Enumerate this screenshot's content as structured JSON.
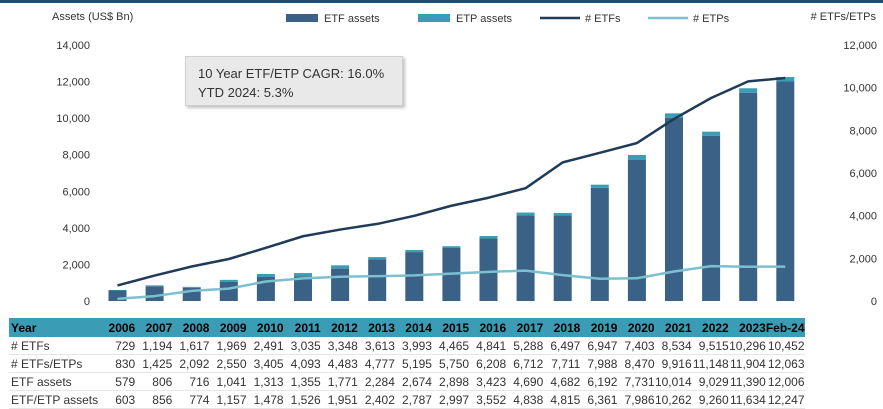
{
  "header": {
    "left_axis_title": "Assets (US$ Bn)",
    "right_axis_title": "# ETFs/ETPs"
  },
  "info_box": {
    "line1": "10 Year ETF/ETP CAGR: 16.0%",
    "line2": "YTD 2024: 5.3%"
  },
  "colors": {
    "etf_assets": "#3a6186",
    "etp_assets": "#3b9cb5",
    "num_etfs": "#1f3b57",
    "num_etps": "#7cc0cf",
    "table_header": "#3b9cb5"
  },
  "chart_data": {
    "type": "bar",
    "categories": [
      "2006",
      "2007",
      "2008",
      "2009",
      "2010",
      "2011",
      "2012",
      "2013",
      "2014",
      "2015",
      "2016",
      "2017",
      "2018",
      "2019",
      "2020",
      "2021",
      "2022",
      "2023",
      "Feb-24"
    ],
    "series": [
      {
        "name": "ETF assets",
        "kind": "bar",
        "axis": "left",
        "values": [
          579,
          806,
          716,
          1041,
          1313,
          1355,
          1771,
          2284,
          2674,
          2898,
          3423,
          4690,
          4682,
          6192,
          7731,
          10014,
          9029,
          11390,
          12006
        ]
      },
      {
        "name": "ETP assets",
        "kind": "bar-stacked",
        "axis": "left",
        "values": [
          24,
          50,
          58,
          116,
          165,
          171,
          180,
          118,
          113,
          99,
          129,
          148,
          133,
          169,
          255,
          248,
          231,
          244,
          241
        ]
      },
      {
        "name": "# ETFs",
        "kind": "line",
        "axis": "right",
        "values": [
          729,
          1194,
          1617,
          1969,
          2491,
          3035,
          3348,
          3613,
          3993,
          4465,
          4841,
          5288,
          6497,
          6947,
          7403,
          8534,
          9515,
          10296,
          10452
        ]
      },
      {
        "name": "# ETPs",
        "kind": "line",
        "axis": "right",
        "values": [
          101,
          231,
          475,
          581,
          914,
          1058,
          1135,
          1164,
          1202,
          1285,
          1367,
          1424,
          1214,
          1041,
          1067,
          1382,
          1633,
          1608,
          1611
        ]
      }
    ],
    "left_axis": {
      "min": 0,
      "max": 14000,
      "ticks": [
        "0",
        "2,000",
        "4,000",
        "6,000",
        "8,000",
        "10,000",
        "12,000",
        "14,000"
      ]
    },
    "right_axis": {
      "min": 0,
      "max": 12000,
      "ticks": [
        "0",
        "2,000",
        "4,000",
        "6,000",
        "8,000",
        "10,000",
        "12,000"
      ]
    },
    "legend_position": "top",
    "grid": false
  },
  "table": {
    "header_label": "Year",
    "years": [
      "2006",
      "2007",
      "2008",
      "2009",
      "2010",
      "2011",
      "2012",
      "2013",
      "2014",
      "2015",
      "2016",
      "2017",
      "2018",
      "2019",
      "2020",
      "2021",
      "2022",
      "2023",
      "Feb-24"
    ],
    "rows": [
      {
        "label": "# ETFs",
        "values": [
          "729",
          "1,194",
          "1,617",
          "1,969",
          "2,491",
          "3,035",
          "3,348",
          "3,613",
          "3,993",
          "4,465",
          "4,841",
          "5,288",
          "6,497",
          "6,947",
          "7,403",
          "8,534",
          "9,515",
          "10,296",
          "10,452"
        ]
      },
      {
        "label": "# ETFs/ETPs",
        "values": [
          "830",
          "1,425",
          "2,092",
          "2,550",
          "3,405",
          "4,093",
          "4,483",
          "4,777",
          "5,195",
          "5,750",
          "6,208",
          "6,712",
          "7,711",
          "7,988",
          "8,470",
          "9,916",
          "11,148",
          "11,904",
          "12,063"
        ]
      },
      {
        "label": "ETF assets",
        "values": [
          "579",
          "806",
          "716",
          "1,041",
          "1,313",
          "1,355",
          "1,771",
          "2,284",
          "2,674",
          "2,898",
          "3,423",
          "4,690",
          "4,682",
          "6,192",
          "7,731",
          "10,014",
          "9,029",
          "11,390",
          "12,006"
        ]
      },
      {
        "label": "ETF/ETP assets",
        "values": [
          "603",
          "856",
          "774",
          "1,157",
          "1,478",
          "1,526",
          "1,951",
          "2,402",
          "2,787",
          "2,997",
          "3,552",
          "4,838",
          "4,815",
          "6,361",
          "7,986",
          "10,262",
          "9,260",
          "11,634",
          "12,247"
        ]
      }
    ]
  }
}
